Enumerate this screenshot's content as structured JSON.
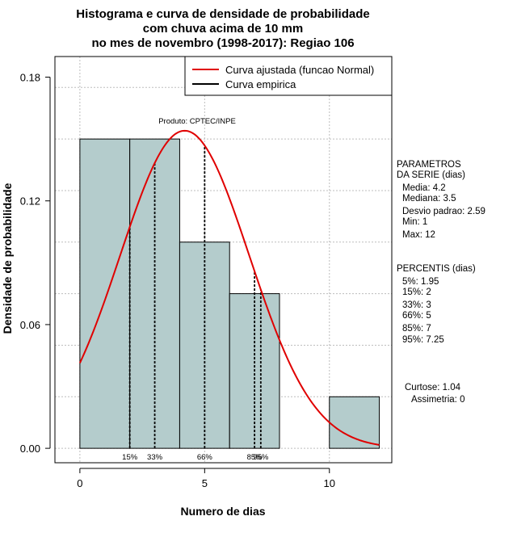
{
  "title": [
    "Histograma e curva de densidade de probabilidade",
    "com chuva acima de 10 mm",
    "no mes de novembro (1998-2017): Regiao 106"
  ],
  "chart_data": {
    "type": "bar",
    "xlabel": "Numero de dias",
    "ylabel": "Densidade de probabilidade",
    "xlim": [
      -1,
      12.5
    ],
    "ylim": [
      -0.007,
      0.19
    ],
    "x_ticks": [
      0,
      5,
      10
    ],
    "x_tick_labels": [
      "0",
      "5",
      "10"
    ],
    "y_ticks": [
      0.0,
      0.06,
      0.12,
      0.18
    ],
    "y_tick_labels": [
      "0.00",
      "0.06",
      "0.12",
      "0.18"
    ],
    "grid": true,
    "bins": [
      {
        "start": 0,
        "end": 2,
        "density": 0.15
      },
      {
        "start": 2,
        "end": 4,
        "density": 0.15
      },
      {
        "start": 4,
        "end": 6,
        "density": 0.1
      },
      {
        "start": 6,
        "end": 8,
        "density": 0.075
      },
      {
        "start": 8,
        "end": 10,
        "density": 0.0
      },
      {
        "start": 10,
        "end": 12,
        "density": 0.025
      }
    ],
    "bar_color": "#b4cccc",
    "normal_fit": {
      "mean": 4.2,
      "sd": 2.59,
      "x_range": [
        0,
        12
      ],
      "color": "#e00000"
    },
    "percentile_lines": [
      {
        "label": "15%",
        "x": 2
      },
      {
        "label": "33%",
        "x": 3
      },
      {
        "label": "66%",
        "x": 5
      },
      {
        "label": "85%",
        "x": 7
      },
      {
        "label": "95%",
        "x": 7.25
      }
    ],
    "legend": {
      "position": "top-right",
      "items": [
        {
          "label": "Curva ajustada (funcao Normal)",
          "color": "#e00000"
        },
        {
          "label": "Curva empirica",
          "color": "#000000"
        }
      ]
    },
    "annotation": "Produto: CPTEC/INPE"
  },
  "side_panel": {
    "params_title": [
      "PARAMETROS",
      "DA SERIE (dias)"
    ],
    "params": [
      "Media: 4.2",
      "Mediana: 3.5",
      "Desvio padrao: 2.59",
      "Min: 1",
      "Max: 12"
    ],
    "percentis_title": "PERCENTIS (dias)",
    "percentis": [
      "5%: 1.95",
      "15%: 2",
      "33%: 3",
      "66%: 5",
      "85%: 7",
      "95%: 7.25"
    ],
    "curtose": "Curtose: 1.04",
    "assimetria": "Assimetria: 0"
  }
}
